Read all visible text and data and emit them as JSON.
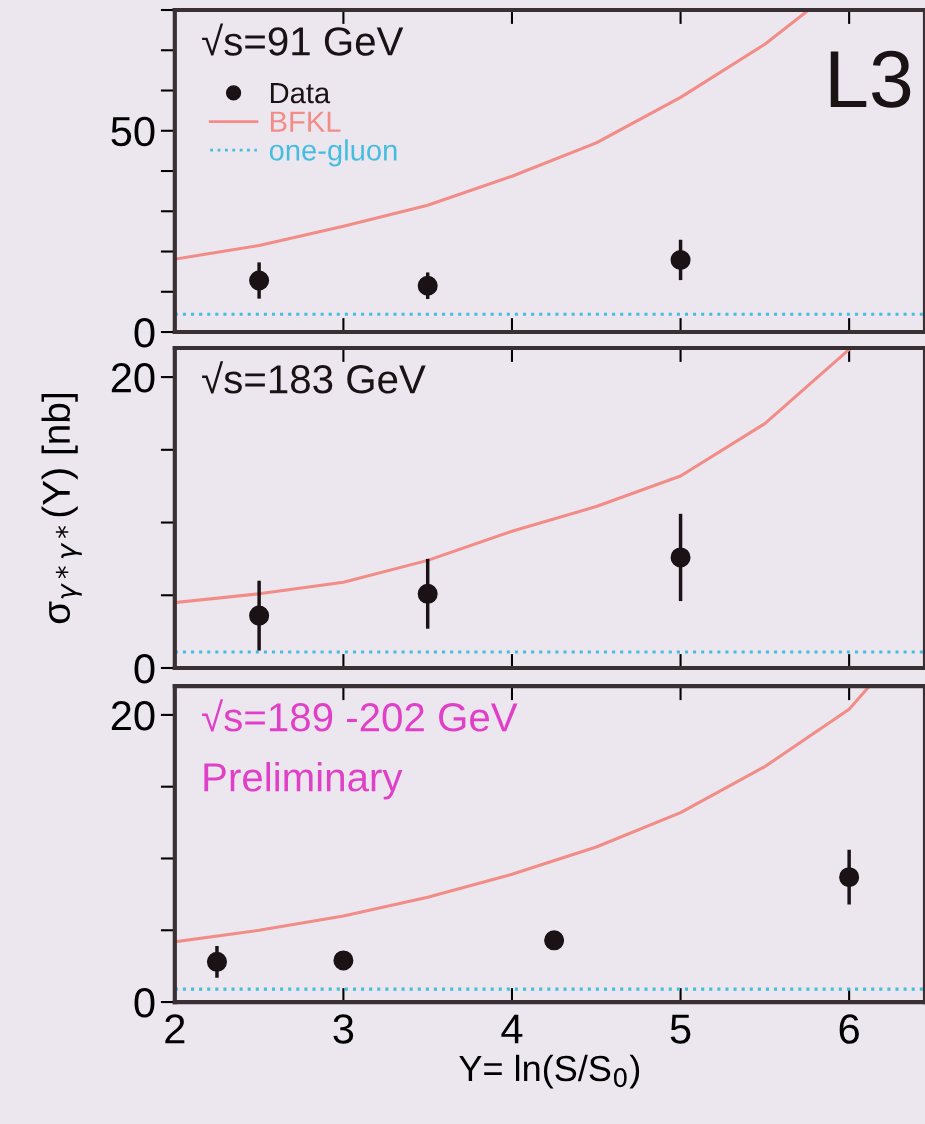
{
  "chart_data": [
    {
      "type": "scatter",
      "xlim": [
        2,
        6.45
      ],
      "ylim": [
        0,
        80
      ],
      "xticks": [
        2,
        3,
        4,
        5,
        6
      ],
      "yticks": [
        0,
        {
          "value": 10,
          "label": null
        },
        {
          "value": 20,
          "label": null
        },
        {
          "value": 30,
          "label": null
        },
        {
          "value": 40,
          "label": null
        },
        50,
        {
          "value": 60,
          "label": null
        },
        {
          "value": 70,
          "label": null
        },
        {
          "value": 80,
          "label": null
        }
      ],
      "tick_labels": "y",
      "legend": "top left",
      "grid": false,
      "annotations": [
        "√s=91 GeV",
        "L3"
      ],
      "series": [
        {
          "name": "Data",
          "color": "#1a1214",
          "marker": "circle",
          "x": [
            2.5,
            3.5,
            5
          ],
          "values": [
            12.8,
            11.5,
            17.9
          ],
          "errors": [
            4.5,
            3.3,
            5
          ]
        },
        {
          "name": "BFKL",
          "type": "line",
          "color": "#f28c86",
          "line_style": "solid",
          "x": [
            2,
            2.5,
            3,
            3.5,
            4,
            4.5,
            5,
            5.5,
            5.76
          ],
          "values": [
            18.1,
            21.5,
            26.3,
            31.5,
            38.7,
            47,
            58.3,
            71.5,
            80
          ]
        },
        {
          "name": "one-gluon",
          "type": "line",
          "color": "#45bde0",
          "line_style": "dotted",
          "x": [
            2,
            6.45
          ],
          "values": [
            4.4,
            4.4
          ]
        }
      ]
    },
    {
      "type": "scatter",
      "xlim": [
        2,
        6.45
      ],
      "ylim": [
        0,
        22
      ],
      "xticks": [
        2,
        3,
        4,
        5,
        6
      ],
      "yticks": [
        0,
        {
          "value": 5,
          "label": null
        },
        {
          "value": 10,
          "label": null
        },
        {
          "value": 15,
          "label": null
        },
        20
      ],
      "tick_labels": "y",
      "grid": false,
      "ylabel": "σ$_{γ*γ*}$(Y) [nb]",
      "annotations": [
        "√s=183 GeV"
      ],
      "series": [
        {
          "color": "#1a1214",
          "marker": "circle",
          "x": [
            2.5,
            3.5,
            5
          ],
          "values": [
            3.6,
            5.1,
            7.6
          ],
          "errors": [
            2.4,
            2.4,
            3
          ]
        },
        {
          "type": "line",
          "color": "#f28c86",
          "line_style": "solid",
          "x": [
            2,
            2.5,
            3,
            3.5,
            4,
            4.5,
            5,
            5.5,
            6
          ],
          "values": [
            4.5,
            5.1,
            5.9,
            7.4,
            9.4,
            11.1,
            13.2,
            16.8,
            21.9
          ]
        },
        {
          "type": "line",
          "color": "#45bde0",
          "line_style": "dotted",
          "x": [
            2,
            6.45
          ],
          "values": [
            1.1,
            1.1
          ]
        }
      ]
    },
    {
      "type": "scatter",
      "xlim": [
        2,
        6.45
      ],
      "ylim": [
        0,
        22
      ],
      "xticks": [
        2,
        3,
        4,
        5,
        6
      ],
      "yticks": [
        0,
        {
          "value": 5,
          "label": null
        },
        {
          "value": 10,
          "label": null
        },
        {
          "value": 15,
          "label": null
        },
        20
      ],
      "grid": false,
      "xlabel": "Y= ln(S/S$_{0}$)",
      "annotations": [
        "√s=189 -202 GeV",
        "Preliminary"
      ],
      "series": [
        {
          "color": "#1a1214",
          "marker": "circle",
          "x": [
            2.25,
            3,
            4.25,
            6
          ],
          "values": [
            2.8,
            2.9,
            4.3,
            8.7
          ],
          "errors": [
            1.1,
            0.6,
            0.6,
            1.9
          ]
        },
        {
          "type": "line",
          "color": "#f28c86",
          "line_style": "solid",
          "x": [
            2,
            2.5,
            3,
            3.5,
            4,
            4.5,
            5,
            5.5,
            6,
            6.12
          ],
          "values": [
            4.2,
            5.0,
            6.0,
            7.3,
            8.9,
            10.8,
            13.2,
            16.4,
            20.4,
            22
          ]
        },
        {
          "type": "line",
          "color": "#45bde0",
          "line_style": "dotted",
          "x": [
            2,
            6.45
          ],
          "values": [
            0.9,
            0.9
          ]
        }
      ]
    }
  ]
}
